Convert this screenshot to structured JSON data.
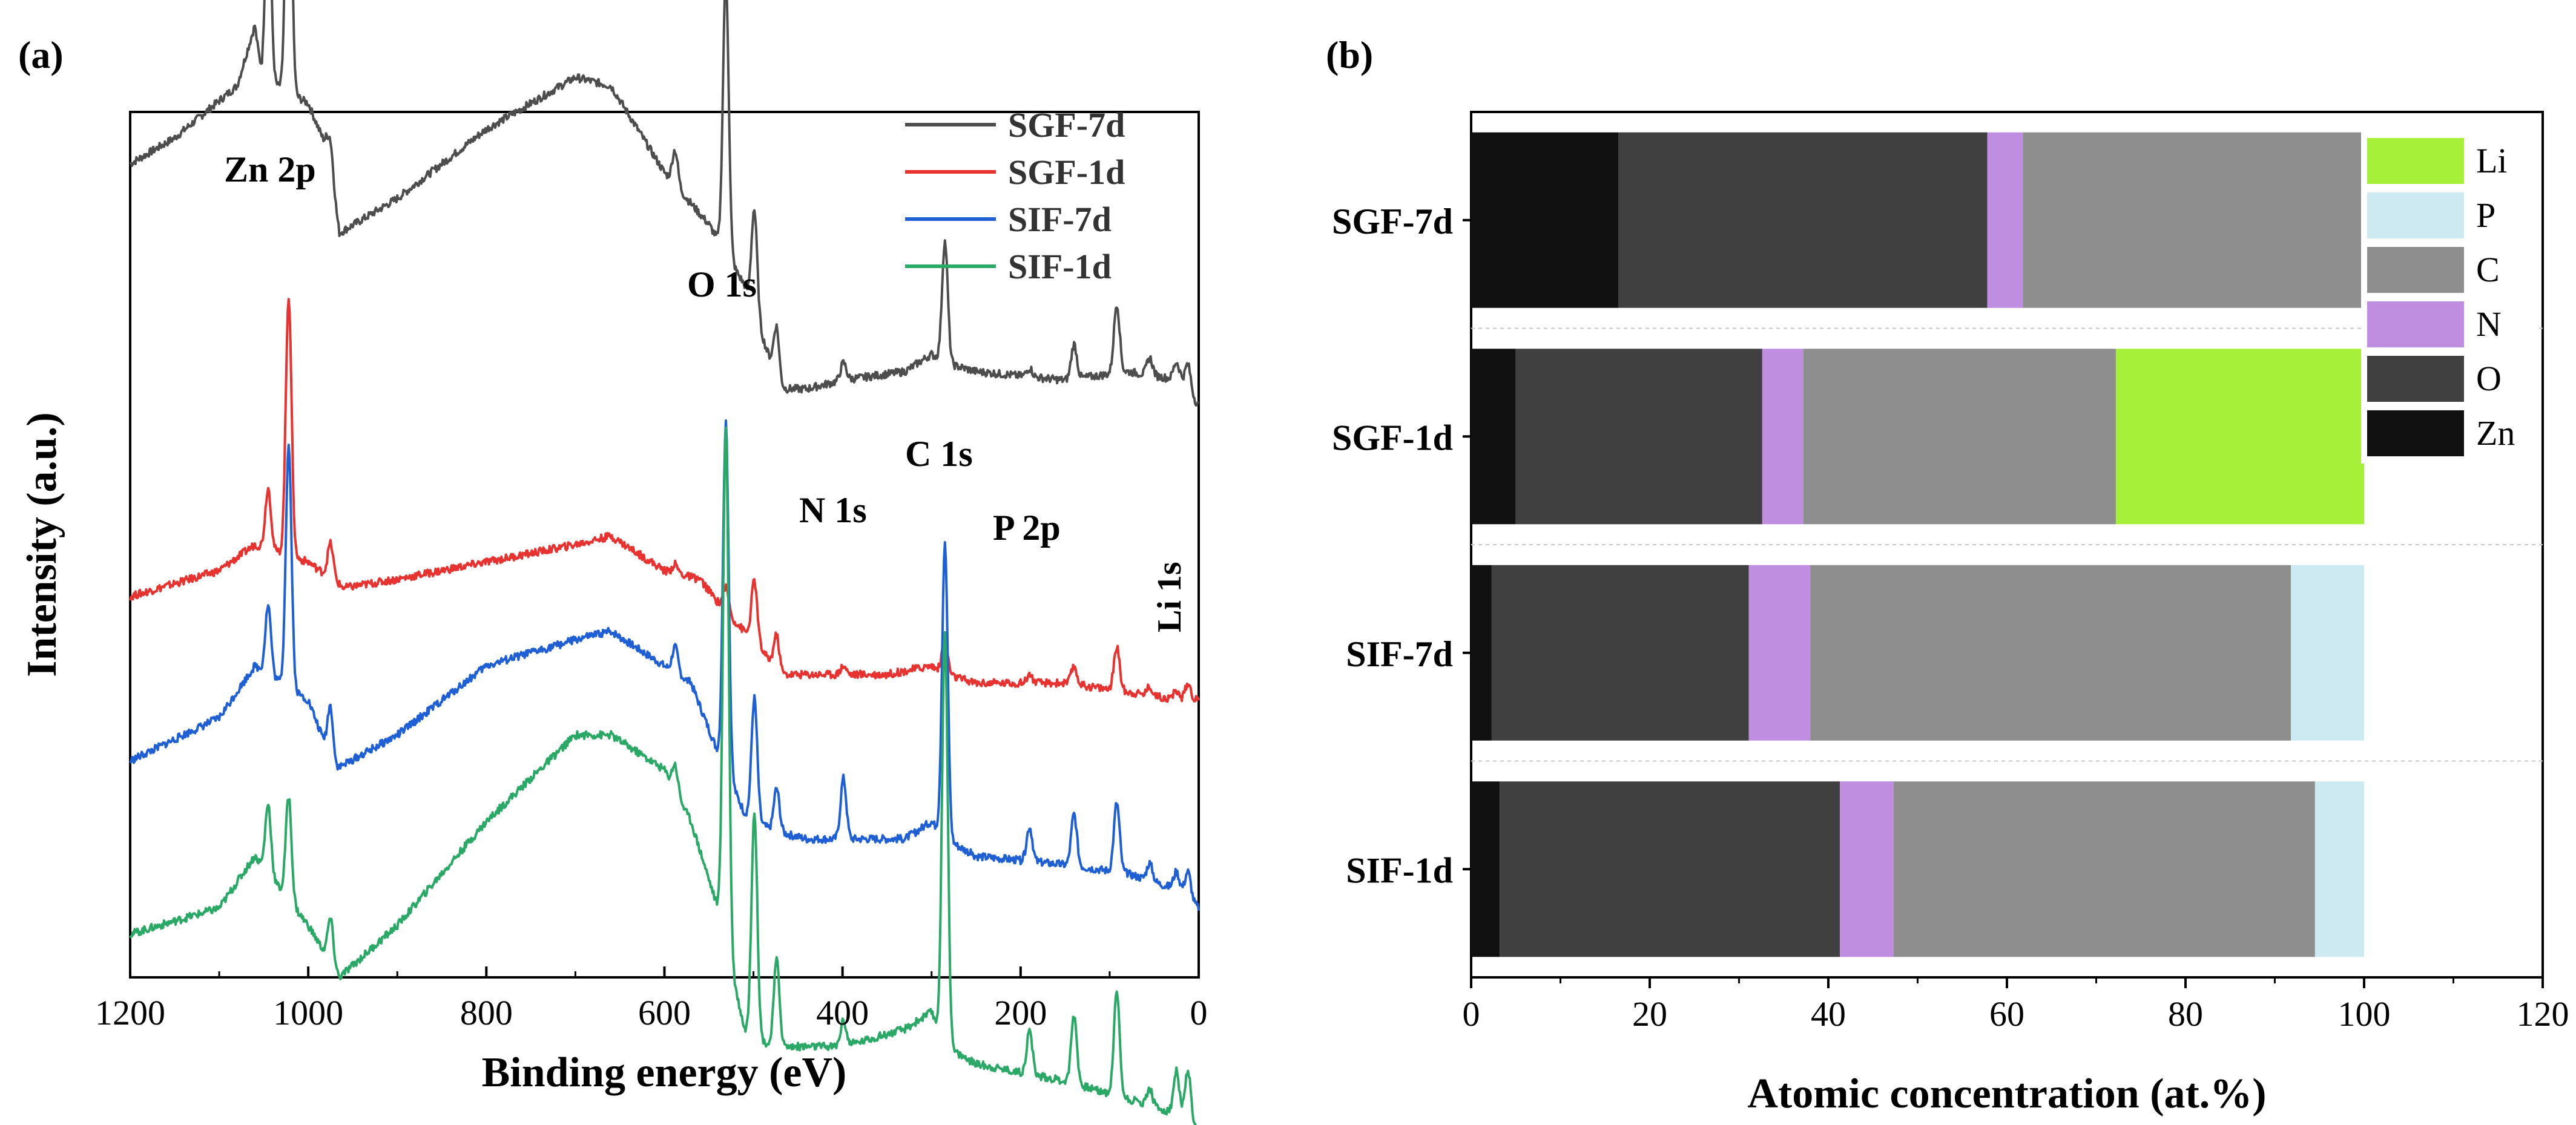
{
  "chart_data": [
    {
      "panel_label": "(a)",
      "type": "line",
      "title": "",
      "xlabel": "Binding energy (eV)",
      "ylabel": "Intensity (a.u.)",
      "xlim": [
        1200,
        0
      ],
      "x_reversed": true,
      "x_ticks": [
        "1200",
        "1000",
        "800",
        "600",
        "400",
        "200",
        "0"
      ],
      "x_tick_values": [
        1200,
        1000,
        800,
        600,
        400,
        200,
        0
      ],
      "y_ticks": [],
      "legend_position": "top-right",
      "peak_annotations": [
        "Zn 2p",
        "O 1s",
        "N 1s",
        "C 1s",
        "P 2p",
        "Li 1s"
      ],
      "peaks_eV": [
        1045,
        1022,
        975,
        588,
        531,
        499,
        474,
        399,
        285,
        190,
        140,
        92,
        55,
        25,
        12
      ],
      "series": [
        {
          "name": "SGF-7d",
          "color": "#4d4d4d",
          "offset": 76,
          "baseline": [
            [
              1200,
              18
            ],
            [
              1150,
              21
            ],
            [
              1080,
              27
            ],
            [
              1060,
              34
            ],
            [
              1052,
              28
            ],
            [
              1000,
              25
            ],
            [
              980,
              20
            ],
            [
              965,
              10
            ],
            [
              900,
              14
            ],
            [
              800,
              22
            ],
            [
              700,
              28
            ],
            [
              660,
              27
            ],
            [
              600,
              17
            ],
            [
              550,
              11
            ],
            [
              510,
              4
            ],
            [
              490,
              -2
            ],
            [
              470,
              -8
            ],
            [
              440,
              -8
            ],
            [
              400,
              -7
            ],
            [
              330,
              -6
            ],
            [
              300,
              -4
            ],
            [
              285,
              -5
            ],
            [
              250,
              -6
            ],
            [
              150,
              -7
            ],
            [
              80,
              -6
            ],
            [
              20,
              -7
            ],
            [
              0,
              -10
            ]
          ],
          "peaks": [
            [
              1045,
              22
            ],
            [
              1022,
              38
            ],
            [
              975,
              4
            ],
            [
              588,
              4
            ],
            [
              531,
              32
            ],
            [
              499,
              12
            ],
            [
              474,
              6
            ],
            [
              399,
              2
            ],
            [
              285,
              14
            ],
            [
              190,
              1
            ],
            [
              140,
              4
            ],
            [
              92,
              8
            ],
            [
              55,
              2
            ],
            [
              25,
              2
            ],
            [
              12,
              3
            ]
          ]
        },
        {
          "name": "SGF-1d",
          "color": "#e8322f",
          "offset": 44,
          "baseline": [
            [
              1200,
              0
            ],
            [
              1100,
              3
            ],
            [
              1060,
              6
            ],
            [
              1000,
              4
            ],
            [
              960,
              1
            ],
            [
              900,
              2
            ],
            [
              800,
              4
            ],
            [
              700,
              6
            ],
            [
              660,
              7
            ],
            [
              600,
              3
            ],
            [
              560,
              2
            ],
            [
              530,
              -2
            ],
            [
              500,
              -5
            ],
            [
              470,
              -9
            ],
            [
              440,
              -9
            ],
            [
              350,
              -9
            ],
            [
              300,
              -8
            ],
            [
              285,
              -9
            ],
            [
              250,
              -10
            ],
            [
              150,
              -10
            ],
            [
              80,
              -11
            ],
            [
              20,
              -12
            ],
            [
              0,
              -12
            ]
          ],
          "peaks": [
            [
              1045,
              7
            ],
            [
              1022,
              30
            ],
            [
              975,
              4
            ],
            [
              588,
              1
            ],
            [
              531,
              3
            ],
            [
              499,
              7
            ],
            [
              474,
              4
            ],
            [
              399,
              1
            ],
            [
              285,
              4
            ],
            [
              190,
              1
            ],
            [
              140,
              2
            ],
            [
              92,
              5
            ],
            [
              55,
              1
            ],
            [
              25,
              1
            ],
            [
              12,
              2
            ]
          ]
        },
        {
          "name": "SIF-7d",
          "color": "#1f5fd6",
          "offset": 30,
          "baseline": [
            [
              1200,
              -5
            ],
            [
              1100,
              0
            ],
            [
              1060,
              6
            ],
            [
              1000,
              2
            ],
            [
              970,
              -6
            ],
            [
              900,
              -2
            ],
            [
              800,
              6
            ],
            [
              700,
              9
            ],
            [
              660,
              10
            ],
            [
              600,
              6
            ],
            [
              570,
              4
            ],
            [
              540,
              -4
            ],
            [
              510,
              -11
            ],
            [
              480,
              -13
            ],
            [
              440,
              -14
            ],
            [
              400,
              -14
            ],
            [
              330,
              -14
            ],
            [
              300,
              -12
            ],
            [
              285,
              -14
            ],
            [
              250,
              -16
            ],
            [
              150,
              -17
            ],
            [
              80,
              -18
            ],
            [
              20,
              -20
            ],
            [
              0,
              -22
            ]
          ],
          "peaks": [
            [
              1045,
              8
            ],
            [
              1022,
              28
            ],
            [
              975,
              6
            ],
            [
              588,
              3
            ],
            [
              531,
              40
            ],
            [
              499,
              14
            ],
            [
              474,
              5
            ],
            [
              399,
              7
            ],
            [
              285,
              34
            ],
            [
              190,
              4
            ],
            [
              140,
              6
            ],
            [
              92,
              8
            ],
            [
              55,
              2
            ],
            [
              25,
              2
            ],
            [
              12,
              3
            ]
          ]
        },
        {
          "name": "SIF-1d",
          "color": "#2aa866",
          "offset": 10,
          "baseline": [
            [
              1200,
              -5
            ],
            [
              1100,
              -2
            ],
            [
              1060,
              4
            ],
            [
              1000,
              -4
            ],
            [
              965,
              -10
            ],
            [
              900,
              -4
            ],
            [
              800,
              8
            ],
            [
              700,
              18
            ],
            [
              660,
              18
            ],
            [
              600,
              14
            ],
            [
              570,
              8
            ],
            [
              540,
              -2
            ],
            [
              510,
              -16
            ],
            [
              480,
              -18
            ],
            [
              440,
              -18
            ],
            [
              400,
              -18
            ],
            [
              330,
              -16
            ],
            [
              300,
              -14
            ],
            [
              285,
              -18
            ],
            [
              250,
              -20
            ],
            [
              150,
              -22
            ],
            [
              80,
              -24
            ],
            [
              20,
              -26
            ],
            [
              0,
              -28
            ]
          ],
          "peaks": [
            [
              1045,
              8
            ],
            [
              1022,
              12
            ],
            [
              975,
              5
            ],
            [
              588,
              3
            ],
            [
              531,
              60
            ],
            [
              499,
              26
            ],
            [
              474,
              10
            ],
            [
              399,
              3
            ],
            [
              285,
              48
            ],
            [
              190,
              5
            ],
            [
              140,
              8
            ],
            [
              92,
              12
            ],
            [
              55,
              2
            ],
            [
              25,
              5
            ],
            [
              12,
              6
            ]
          ]
        }
      ]
    },
    {
      "panel_label": "(b)",
      "type": "bar",
      "orientation": "horizontal",
      "stacked": true,
      "title": "",
      "xlabel": "Atomic concentration (at.%)",
      "ylabel": "",
      "xlim": [
        0,
        120
      ],
      "x_ticks": [
        "0",
        "20",
        "40",
        "60",
        "80",
        "100",
        "120"
      ],
      "x_tick_values": [
        0,
        20,
        40,
        60,
        80,
        100,
        120
      ],
      "categories": [
        "SGF-7d",
        "SGF-1d",
        "SIF-7d",
        "SIF-1d"
      ],
      "series": [
        {
          "name": "Zn",
          "color": "#111111",
          "values": [
            16.5,
            5.0,
            2.3,
            3.2
          ]
        },
        {
          "name": "O",
          "color": "#404040",
          "values": [
            41.3,
            27.6,
            28.8,
            38.1
          ]
        },
        {
          "name": "N",
          "color": "#c08ee0",
          "values": [
            4.0,
            4.6,
            6.9,
            6.0
          ]
        },
        {
          "name": "C",
          "color": "#8e8e8e",
          "values": [
            38.2,
            35.0,
            53.8,
            47.2
          ]
        },
        {
          "name": "P",
          "color": "#cdeaf3",
          "values": [
            0,
            0,
            8.2,
            5.5
          ]
        },
        {
          "name": "Li",
          "color": "#a6f03a",
          "values": [
            0,
            27.8,
            0,
            0
          ]
        }
      ],
      "legend_order": [
        "Li",
        "P",
        "C",
        "N",
        "O",
        "Zn"
      ],
      "legend_position": "top-right"
    }
  ]
}
